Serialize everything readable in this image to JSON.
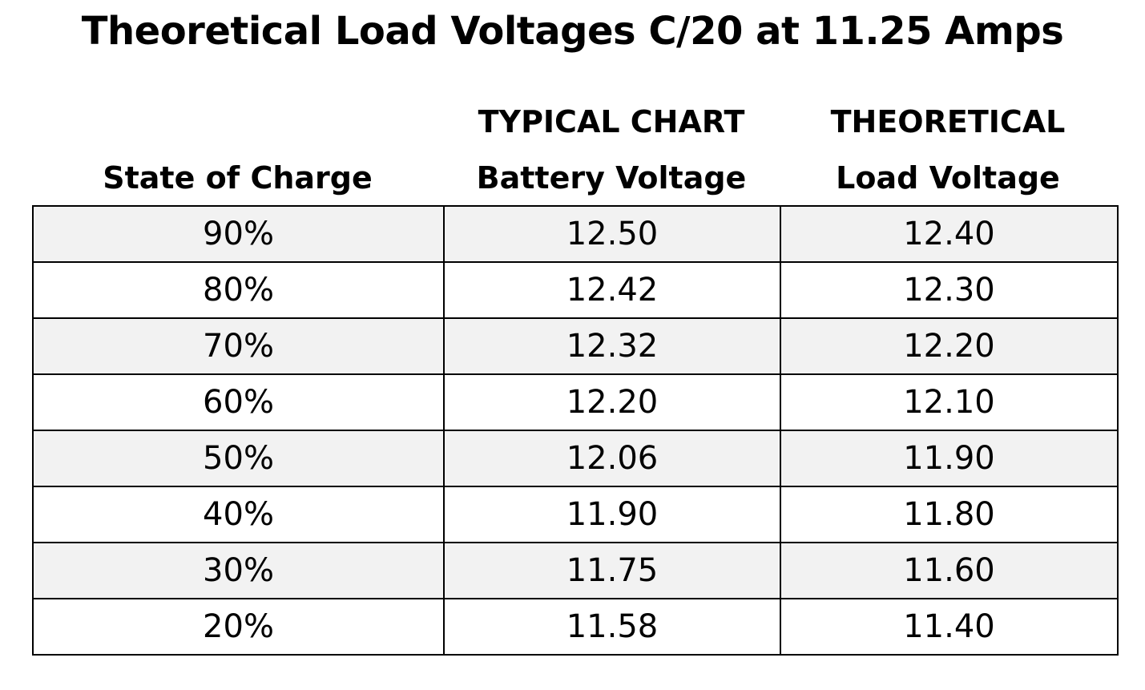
{
  "chart_data": {
    "type": "table",
    "title": "Theoretical Load Voltages C/20 at 11.25 Amps",
    "columns": [
      {
        "top": "",
        "bottom": "State of Charge"
      },
      {
        "top": "TYPICAL CHART",
        "bottom": "Battery Voltage"
      },
      {
        "top": "THEORETICAL",
        "bottom": "Load Voltage"
      }
    ],
    "rows": [
      [
        "90%",
        "12.50",
        "12.40"
      ],
      [
        "80%",
        "12.42",
        "12.30"
      ],
      [
        "70%",
        "12.32",
        "12.20"
      ],
      [
        "60%",
        "12.20",
        "12.10"
      ],
      [
        "50%",
        "12.06",
        "11.90"
      ],
      [
        "40%",
        "11.90",
        "11.80"
      ],
      [
        "30%",
        "11.75",
        "11.60"
      ],
      [
        "20%",
        "11.58",
        "11.40"
      ]
    ],
    "row_shading": "alternating, starting shaded",
    "shade_color": "#f2f2f2",
    "border_color": "#000000"
  }
}
